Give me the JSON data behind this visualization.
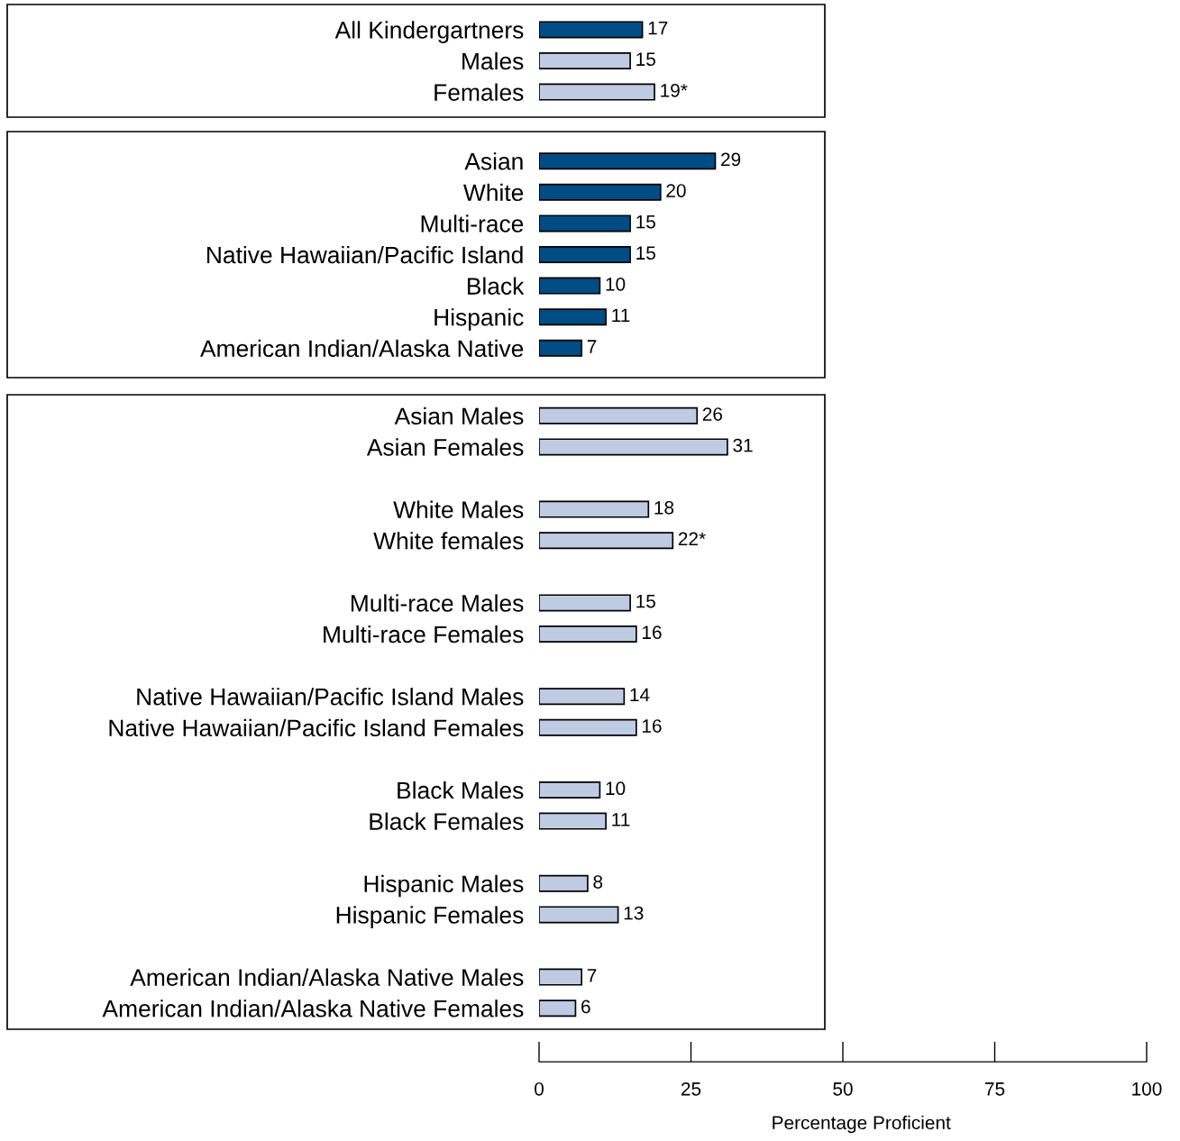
{
  "chart_data": [
    {
      "type": "bar",
      "orientation": "horizontal",
      "categories": [
        "All Kindergartners",
        "Males",
        "Females"
      ],
      "values": [
        17,
        15,
        19
      ],
      "colors": [
        "#004c84",
        "#bfcbe2",
        "#bfcbe2"
      ],
      "value_labels": [
        "17",
        "15",
        "19*"
      ],
      "xlim": [
        0,
        100
      ],
      "tick_labels": "y"
    },
    {
      "type": "bar",
      "orientation": "horizontal",
      "categories": [
        "Asian",
        "White",
        "Multi-race",
        "Native Hawaiian/Pacific Island",
        "Black",
        "Hispanic",
        "American Indian/Alaska Native"
      ],
      "values": [
        29,
        20,
        15,
        15,
        10,
        11,
        7
      ],
      "color": "#004c84",
      "data_labels": true,
      "xlim": [
        0,
        100
      ],
      "tick_labels": "y"
    },
    {
      "type": "bar",
      "orientation": "horizontal",
      "categories": [
        "Asian Males",
        "Asian Females",
        null,
        "White Males",
        "White females",
        null,
        "Multi-race Males",
        "Multi-race Females",
        null,
        "Native Hawaiian/Pacific Island Males",
        "Native Hawaiian/Pacific Island Females",
        null,
        "Black Males",
        "Black Females",
        null,
        "Hispanic Males",
        "Hispanic Females",
        null,
        "American Indian/Alaska Native Males",
        "American Indian/Alaska Native Females"
      ],
      "values": [
        26,
        31,
        null,
        18,
        22,
        null,
        15,
        16,
        null,
        14,
        16,
        null,
        10,
        11,
        null,
        8,
        13,
        null,
        7,
        6
      ],
      "color": "#bfcbe2",
      "value_labels": [
        "26",
        "31",
        null,
        "18",
        "22*",
        null,
        "15",
        "16",
        null,
        "14",
        "16",
        null,
        "10",
        "11",
        null,
        "8",
        "13",
        null,
        "7",
        "6"
      ],
      "xlim": [
        0,
        100
      ],
      "xticks": [
        0,
        25,
        50,
        75,
        100
      ],
      "xlabel": "Percentage Proficient"
    }
  ]
}
